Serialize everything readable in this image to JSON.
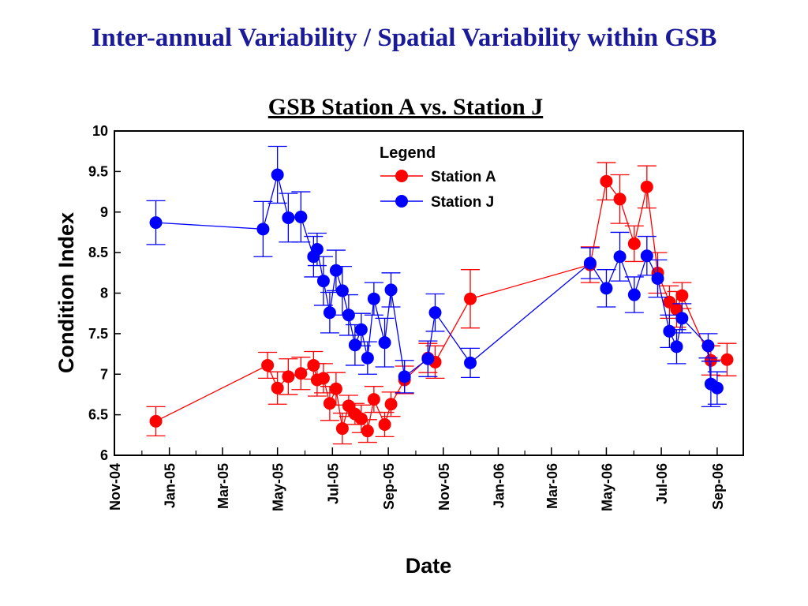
{
  "slide_title": "Inter-annual Variability / Spatial Variability within GSB",
  "chart_data": {
    "type": "scatter",
    "title": "GSB Station A vs. Station J",
    "xlabel": "Date",
    "ylabel": "Condition Index",
    "xlim": [
      "2004-11-01",
      "2006-09-30"
    ],
    "ylim": [
      6,
      10
    ],
    "yticks": [
      6,
      6.5,
      7,
      7.5,
      8,
      8.5,
      9,
      9.5,
      10
    ],
    "ytick_labels": [
      "6",
      "6.5",
      "7",
      "7.5",
      "8",
      "8.5",
      "9",
      "9.5",
      "10"
    ],
    "xticks": [
      {
        "date": "2004-11-01",
        "label": "Nov-04"
      },
      {
        "date": "2005-01-01",
        "label": "Jan-05"
      },
      {
        "date": "2005-03-01",
        "label": "Mar-05"
      },
      {
        "date": "2005-05-01",
        "label": "May-05"
      },
      {
        "date": "2005-07-01",
        "label": "Jul-05"
      },
      {
        "date": "2005-09-01",
        "label": "Sep-05"
      },
      {
        "date": "2005-11-01",
        "label": "Nov-05"
      },
      {
        "date": "2006-01-01",
        "label": "Jan-06"
      },
      {
        "date": "2006-03-01",
        "label": "Mar-06"
      },
      {
        "date": "2006-05-01",
        "label": "May-06"
      },
      {
        "date": "2006-07-01",
        "label": "Jul-06"
      },
      {
        "date": "2006-09-01",
        "label": "Sep-06"
      }
    ],
    "grid": false,
    "legend": {
      "title": "Legend",
      "position": "top-center"
    },
    "series": [
      {
        "name": "Station A",
        "color": "#ff0000",
        "points": [
          {
            "x": "2004-12-17",
            "y": 6.42,
            "err": 0.18
          },
          {
            "x": "2005-04-20",
            "y": 7.11,
            "err": 0.16
          },
          {
            "x": "2005-05-01",
            "y": 6.83,
            "err": 0.2
          },
          {
            "x": "2005-05-13",
            "y": 6.97,
            "err": 0.22
          },
          {
            "x": "2005-05-27",
            "y": 7.01,
            "err": 0.2
          },
          {
            "x": "2005-06-10",
            "y": 7.11,
            "err": 0.17
          },
          {
            "x": "2005-06-14",
            "y": 6.93,
            "err": 0.2
          },
          {
            "x": "2005-06-21",
            "y": 6.95,
            "err": 0.18
          },
          {
            "x": "2005-06-28",
            "y": 6.64,
            "err": 0.21
          },
          {
            "x": "2005-07-05",
            "y": 6.82,
            "err": 0.2
          },
          {
            "x": "2005-07-12",
            "y": 6.33,
            "err": 0.19
          },
          {
            "x": "2005-07-19",
            "y": 6.61,
            "err": 0.13
          },
          {
            "x": "2005-07-26",
            "y": 6.51,
            "err": 0.13
          },
          {
            "x": "2005-08-02",
            "y": 6.45,
            "err": 0.17
          },
          {
            "x": "2005-08-09",
            "y": 6.3,
            "err": 0.14
          },
          {
            "x": "2005-08-16",
            "y": 6.69,
            "err": 0.16
          },
          {
            "x": "2005-08-28",
            "y": 6.38,
            "err": 0.15
          },
          {
            "x": "2005-09-04",
            "y": 6.63,
            "err": 0.15
          },
          {
            "x": "2005-09-19",
            "y": 6.93,
            "err": 0.17
          },
          {
            "x": "2005-10-15",
            "y": 7.2,
            "err": 0.18
          },
          {
            "x": "2005-10-23",
            "y": 7.15,
            "err": 0.2
          },
          {
            "x": "2005-12-01",
            "y": 7.93,
            "err": 0.36
          },
          {
            "x": "2006-04-13",
            "y": 8.35,
            "err": 0.22
          },
          {
            "x": "2006-05-01",
            "y": 9.38,
            "err": 0.23
          },
          {
            "x": "2006-05-16",
            "y": 9.16,
            "err": 0.3
          },
          {
            "x": "2006-06-01",
            "y": 8.61,
            "err": 0.22
          },
          {
            "x": "2006-06-15",
            "y": 9.31,
            "err": 0.26
          },
          {
            "x": "2006-06-27",
            "y": 8.25,
            "err": 0.25
          },
          {
            "x": "2006-07-10",
            "y": 7.89,
            "err": 0.2
          },
          {
            "x": "2006-07-18",
            "y": 7.8,
            "err": 0.22
          },
          {
            "x": "2006-07-24",
            "y": 7.97,
            "err": 0.16
          },
          {
            "x": "2006-08-25",
            "y": 7.17,
            "err": 0.18
          },
          {
            "x": "2006-09-12",
            "y": 7.18,
            "err": 0.2
          }
        ]
      },
      {
        "name": "Station J",
        "color": "#0000ff",
        "points": [
          {
            "x": "2004-12-17",
            "y": 8.87,
            "err": 0.27
          },
          {
            "x": "2005-04-15",
            "y": 8.79,
            "err": 0.34
          },
          {
            "x": "2005-05-01",
            "y": 9.46,
            "err": 0.35
          },
          {
            "x": "2005-05-13",
            "y": 8.93,
            "err": 0.3
          },
          {
            "x": "2005-05-27",
            "y": 8.94,
            "err": 0.31
          },
          {
            "x": "2005-06-10",
            "y": 8.45,
            "err": 0.25
          },
          {
            "x": "2005-06-14",
            "y": 8.54,
            "err": 0.2
          },
          {
            "x": "2005-06-21",
            "y": 8.15,
            "err": 0.3
          },
          {
            "x": "2005-06-28",
            "y": 7.76,
            "err": 0.25
          },
          {
            "x": "2005-07-05",
            "y": 8.28,
            "err": 0.25
          },
          {
            "x": "2005-07-12",
            "y": 8.03,
            "err": 0.3
          },
          {
            "x": "2005-07-19",
            "y": 7.73,
            "err": 0.25
          },
          {
            "x": "2005-07-26",
            "y": 7.36,
            "err": 0.25
          },
          {
            "x": "2005-08-02",
            "y": 7.55,
            "err": 0.2
          },
          {
            "x": "2005-08-09",
            "y": 7.2,
            "err": 0.2
          },
          {
            "x": "2005-08-16",
            "y": 7.93,
            "err": 0.2
          },
          {
            "x": "2005-08-28",
            "y": 7.39,
            "err": 0.3
          },
          {
            "x": "2005-09-04",
            "y": 8.04,
            "err": 0.21
          },
          {
            "x": "2005-09-19",
            "y": 6.97,
            "err": 0.2
          },
          {
            "x": "2005-10-15",
            "y": 7.19,
            "err": 0.22
          },
          {
            "x": "2005-10-23",
            "y": 7.76,
            "err": 0.23
          },
          {
            "x": "2005-12-01",
            "y": 7.14,
            "err": 0.18
          },
          {
            "x": "2006-04-13",
            "y": 8.37,
            "err": 0.19
          },
          {
            "x": "2006-05-01",
            "y": 8.06,
            "err": 0.23
          },
          {
            "x": "2006-05-16",
            "y": 8.45,
            "err": 0.3
          },
          {
            "x": "2006-06-01",
            "y": 7.98,
            "err": 0.22
          },
          {
            "x": "2006-06-15",
            "y": 8.46,
            "err": 0.24
          },
          {
            "x": "2006-06-27",
            "y": 8.18,
            "err": 0.23
          },
          {
            "x": "2006-07-10",
            "y": 7.53,
            "err": 0.2
          },
          {
            "x": "2006-07-18",
            "y": 7.34,
            "err": 0.21
          },
          {
            "x": "2006-07-24",
            "y": 7.69,
            "err": 0.18
          },
          {
            "x": "2006-08-22",
            "y": 7.35,
            "err": 0.15
          },
          {
            "x": "2006-08-25",
            "y": 6.88,
            "err": 0.28
          },
          {
            "x": "2006-09-01",
            "y": 6.83,
            "err": 0.2
          }
        ]
      }
    ]
  }
}
